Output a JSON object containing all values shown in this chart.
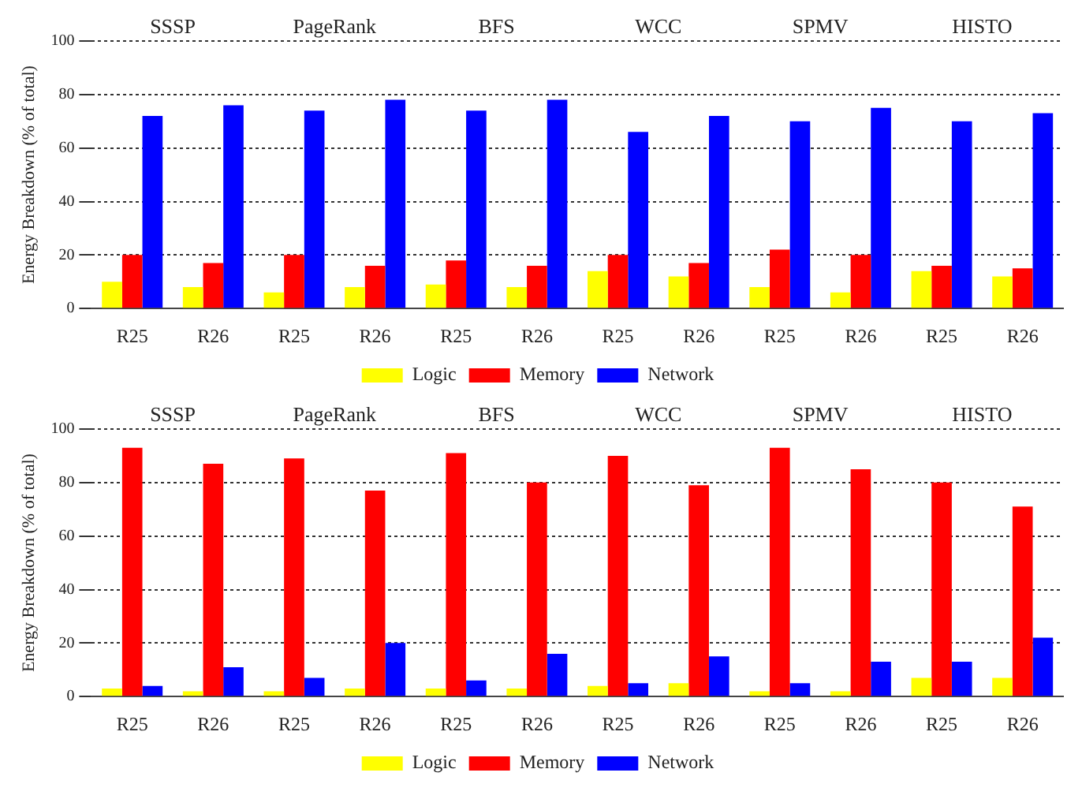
{
  "chart_data": [
    {
      "type": "bar",
      "ylabel": "Energy Breakdown (% of total)",
      "annotations": [
        "SSSP",
        "PageRank",
        "BFS",
        "WCC",
        "SPMV",
        "HISTO"
      ],
      "categories": [
        "R25",
        "R26",
        "R25",
        "R26",
        "R25",
        "R26",
        "R25",
        "R26",
        "R25",
        "R26",
        "R25",
        "R26"
      ],
      "series": [
        {
          "name": "Logic",
          "color": "#ffff00",
          "values": [
            10,
            8,
            6,
            8,
            9,
            8,
            14,
            12,
            8,
            6,
            14,
            12
          ]
        },
        {
          "name": "Memory",
          "color": "#ff0000",
          "values": [
            20,
            17,
            20,
            16,
            18,
            16,
            20,
            17,
            22,
            20,
            16,
            15
          ]
        },
        {
          "name": "Network",
          "color": "#0000ff",
          "values": [
            72,
            76,
            74,
            78,
            74,
            78,
            66,
            72,
            70,
            75,
            70,
            73
          ]
        }
      ],
      "ylim": [
        0,
        100
      ],
      "yticks": [
        0,
        20,
        40,
        60,
        80,
        100
      ],
      "grid": "y",
      "legend": "bottom"
    },
    {
      "type": "bar",
      "ylabel": "Energy Breakdown (% of total)",
      "annotations": [
        "SSSP",
        "PageRank",
        "BFS",
        "WCC",
        "SPMV",
        "HISTO"
      ],
      "categories": [
        "R25",
        "R26",
        "R25",
        "R26",
        "R25",
        "R26",
        "R25",
        "R26",
        "R25",
        "R26",
        "R25",
        "R26"
      ],
      "series": [
        {
          "name": "Logic",
          "color": "#ffff00",
          "values": [
            3,
            2,
            2,
            3,
            3,
            3,
            4,
            5,
            2,
            2,
            7,
            7
          ]
        },
        {
          "name": "Memory",
          "color": "#ff0000",
          "values": [
            93,
            87,
            89,
            77,
            91,
            80,
            90,
            79,
            93,
            85,
            80,
            71
          ]
        },
        {
          "name": "Network",
          "color": "#0000ff",
          "values": [
            4,
            11,
            7,
            20,
            6,
            16,
            5,
            15,
            5,
            13,
            13,
            22
          ]
        }
      ],
      "ylim": [
        0,
        100
      ],
      "yticks": [
        0,
        20,
        40,
        60,
        80,
        100
      ],
      "grid": "y",
      "legend": "bottom"
    }
  ]
}
